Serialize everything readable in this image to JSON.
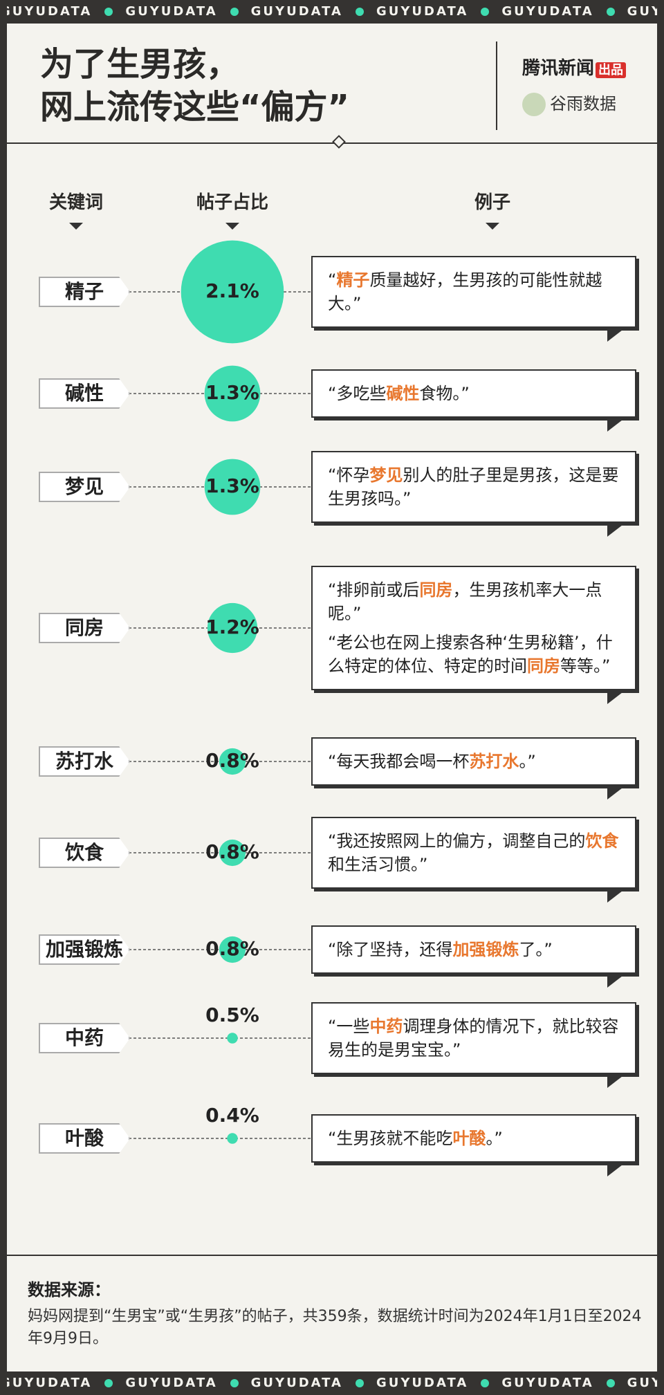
{
  "brand": "GUYUDATA",
  "publisher": {
    "name": "腾讯新闻",
    "tag": "出品",
    "partner": "谷雨数据"
  },
  "chart_data": {
    "type": "bubble",
    "title": [
      "为了生男孩，",
      "网上流传这些“偏方”"
    ],
    "columns": {
      "keyword": "关键词",
      "share": "帖子占比",
      "example": "例子"
    },
    "categories": [
      "精子",
      "碱性",
      "梦见",
      "同房",
      "苏打水",
      "饮食",
      "加强锻炼",
      "中药",
      "叶酸"
    ],
    "values": [
      2.1,
      1.3,
      1.3,
      1.2,
      0.8,
      0.8,
      0.8,
      0.5,
      0.4
    ],
    "value_labels": [
      "2.1%",
      "1.3%",
      "1.3%",
      "1.2%",
      "0.8%",
      "0.8%",
      "0.8%",
      "0.5%",
      "0.4%"
    ],
    "color": "#3fdcb0",
    "highlight_color": "#e8772e",
    "examples": [
      [
        {
          "before": "“",
          "keyword": "精子",
          "after": "质量越好，生男孩的可能性就越大。”"
        }
      ],
      [
        {
          "before": "“多吃些",
          "keyword": "碱性",
          "after": "食物。”"
        }
      ],
      [
        {
          "before": "“怀孕",
          "keyword": "梦见",
          "after": "别人的肚子里是男孩，这是要生男孩吗。”"
        }
      ],
      [
        {
          "before": "“排卵前或后",
          "keyword": "同房",
          "after": "，生男孩机率大一点呢。”"
        },
        {
          "before": "“老公也在网上搜索各种‘生男秘籍’，什么特定的体位、特定的时间",
          "keyword": "同房",
          "after": "等等。”"
        }
      ],
      [
        {
          "before": "“每天我都会喝一杯",
          "keyword": "苏打水",
          "after": "。”"
        }
      ],
      [
        {
          "before": "“我还按照网上的偏方，调整自己的",
          "keyword": "饮食",
          "after": "和生活习惯。”"
        }
      ],
      [
        {
          "before": "“除了坚持，还得",
          "keyword": "加强锻炼",
          "after": "了。”"
        }
      ],
      [
        {
          "before": "“一些",
          "keyword": "中药",
          "after": "调理身体的情况下，就比较容易生的是男宝宝。”"
        }
      ],
      [
        {
          "before": "“生男孩就不能吃",
          "keyword": "叶酸",
          "after": "。”"
        }
      ]
    ]
  },
  "source": {
    "label": "数据来源：",
    "text": "妈妈网提到“生男宝”或“生男孩”的帖子，共359条，数据统计时间为2024年1月1日至2024年9月9日。"
  }
}
